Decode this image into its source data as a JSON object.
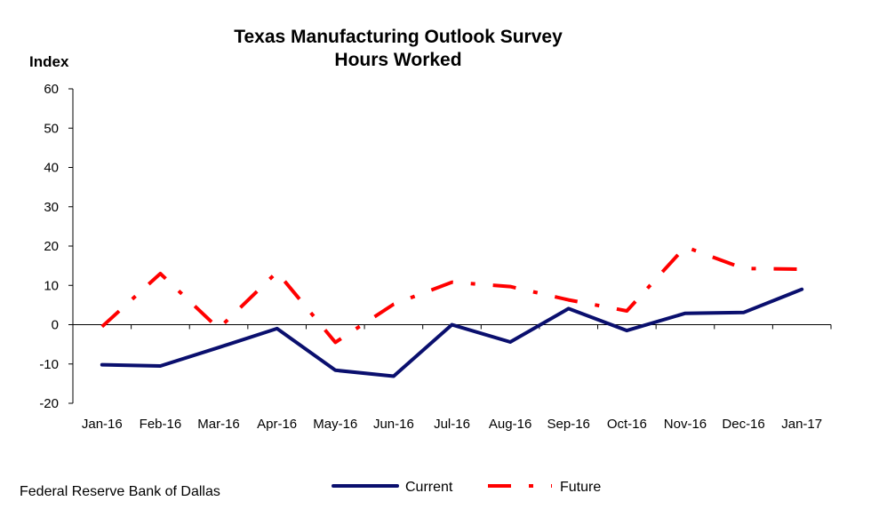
{
  "chart_data": {
    "type": "line",
    "title": "Texas Manufacturing Outlook Survey",
    "subtitle": "Hours Worked",
    "ylabel": "Index",
    "xlabel": "",
    "ylim": [
      -20,
      60
    ],
    "yticks": [
      "60",
      "50",
      "40",
      "30",
      "20",
      "10",
      "0",
      "-10",
      "-20"
    ],
    "categories": [
      "Jan-16",
      "Feb-16",
      "Mar-16",
      "Apr-16",
      "May-16",
      "Jun-16",
      "Jul-16",
      "Aug-16",
      "Sep-16",
      "Oct-16",
      "Nov-16",
      "Dec-16",
      "Jan-17"
    ],
    "series": [
      {
        "name": "Current",
        "color": "#0a0f6e",
        "style": "solid",
        "values": [
          -10.2,
          -10.5,
          -5.8,
          -1.0,
          -11.6,
          -13.1,
          0.0,
          -4.4,
          4.1,
          -1.5,
          2.9,
          3.1,
          9.0
        ]
      },
      {
        "name": "Future",
        "color": "#ff0000",
        "style": "dash-dot",
        "values": [
          -0.5,
          13.0,
          -1.0,
          13.4,
          -4.5,
          5.2,
          10.8,
          9.7,
          6.3,
          3.5,
          19.8,
          14.3,
          14.1
        ]
      }
    ],
    "grid": false,
    "legend_position": "bottom-center"
  },
  "footer": {
    "source": "Federal Reserve Bank of Dallas"
  }
}
